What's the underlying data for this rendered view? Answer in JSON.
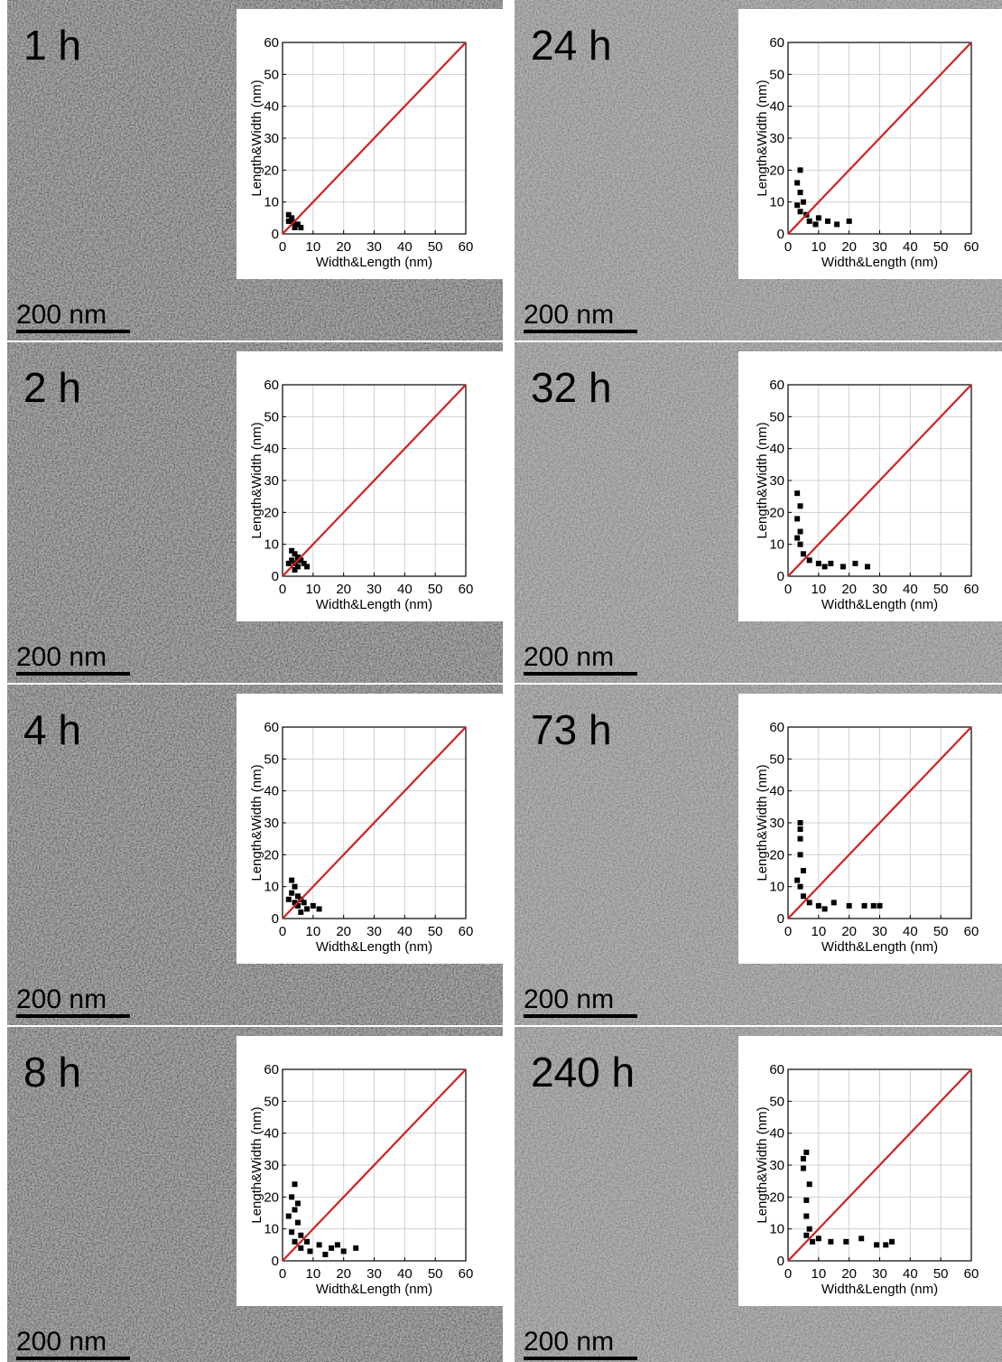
{
  "chart_data": [
    {
      "type": "scatter",
      "label": "1 h",
      "scale_bar": "200 nm",
      "xlabel": "Width&Length (nm)",
      "ylabel": "Length&Width (nm)",
      "xlim": [
        0,
        60
      ],
      "ylim": [
        0,
        60
      ],
      "xticks": [
        0,
        10,
        20,
        30,
        40,
        50,
        60
      ],
      "yticks": [
        0,
        10,
        20,
        30,
        40,
        50,
        60
      ],
      "grid": true,
      "reference_line": {
        "x": [
          0,
          60
        ],
        "y": [
          0,
          60
        ],
        "color": "#d02020"
      },
      "series": [
        {
          "color": "#000000",
          "x": [
            2,
            3,
            2,
            3,
            4,
            6,
            5,
            4,
            4,
            3
          ],
          "y": [
            6,
            5,
            4,
            4,
            3,
            2,
            3,
            2,
            3,
            4
          ]
        }
      ]
    },
    {
      "type": "scatter",
      "label": "2 h",
      "scale_bar": "200 nm",
      "xlabel": "Width&Length (nm)",
      "ylabel": "Length&Width (nm)",
      "xlim": [
        0,
        60
      ],
      "ylim": [
        0,
        60
      ],
      "xticks": [
        0,
        10,
        20,
        30,
        40,
        50,
        60
      ],
      "yticks": [
        0,
        10,
        20,
        30,
        40,
        50,
        60
      ],
      "grid": true,
      "reference_line": {
        "x": [
          0,
          60
        ],
        "y": [
          0,
          60
        ],
        "color": "#d02020"
      },
      "series": [
        {
          "color": "#000000",
          "x": [
            3,
            4,
            5,
            3,
            4,
            2,
            5,
            8,
            7,
            6,
            5,
            4,
            4,
            5
          ],
          "y": [
            8,
            7,
            6,
            5,
            4,
            4,
            5,
            3,
            4,
            5,
            3,
            4,
            2,
            5
          ]
        }
      ]
    },
    {
      "type": "scatter",
      "label": "4 h",
      "scale_bar": "200 nm",
      "xlabel": "Width&Length (nm)",
      "ylabel": "Length&Width (nm)",
      "xlim": [
        0,
        60
      ],
      "ylim": [
        0,
        60
      ],
      "xticks": [
        0,
        10,
        20,
        30,
        40,
        50,
        60
      ],
      "yticks": [
        0,
        10,
        20,
        30,
        40,
        50,
        60
      ],
      "grid": true,
      "reference_line": {
        "x": [
          0,
          60
        ],
        "y": [
          0,
          60
        ],
        "color": "#d02020"
      },
      "series": [
        {
          "color": "#000000",
          "x": [
            3,
            4,
            3,
            5,
            4,
            6,
            2,
            12,
            10,
            8,
            7,
            5,
            6,
            6
          ],
          "y": [
            12,
            10,
            8,
            7,
            5,
            6,
            6,
            3,
            4,
            3,
            5,
            4,
            6,
            2
          ]
        }
      ]
    },
    {
      "type": "scatter",
      "label": "8 h",
      "scale_bar": "200 nm",
      "xlabel": "Width&Length (nm)",
      "ylabel": "Length&Width (nm)",
      "xlim": [
        0,
        60
      ],
      "ylim": [
        0,
        60
      ],
      "xticks": [
        0,
        10,
        20,
        30,
        40,
        50,
        60
      ],
      "yticks": [
        0,
        10,
        20,
        30,
        40,
        50,
        60
      ],
      "grid": true,
      "reference_line": {
        "x": [
          0,
          60
        ],
        "y": [
          0,
          60
        ],
        "color": "#d02020"
      },
      "series": [
        {
          "color": "#000000",
          "x": [
            4,
            3,
            4,
            5,
            3,
            6,
            4,
            2,
            5,
            24,
            20,
            16,
            12,
            9,
            8,
            6,
            14,
            18
          ],
          "y": [
            24,
            20,
            16,
            12,
            9,
            8,
            6,
            14,
            18,
            4,
            3,
            4,
            5,
            3,
            6,
            4,
            2,
            5
          ]
        }
      ]
    },
    {
      "type": "scatter",
      "label": "24 h",
      "scale_bar": "200 nm",
      "xlabel": "Width&Length (nm)",
      "ylabel": "Length&Width (nm)",
      "xlim": [
        0,
        60
      ],
      "ylim": [
        0,
        60
      ],
      "xticks": [
        0,
        10,
        20,
        30,
        40,
        50,
        60
      ],
      "yticks": [
        0,
        10,
        20,
        30,
        40,
        50,
        60
      ],
      "grid": true,
      "reference_line": {
        "x": [
          0,
          60
        ],
        "y": [
          0,
          60
        ],
        "color": "#d02020"
      },
      "series": [
        {
          "color": "#000000",
          "x": [
            4,
            3,
            4,
            5,
            4,
            6,
            3,
            20,
            16,
            13,
            10,
            7,
            6,
            9
          ],
          "y": [
            20,
            16,
            13,
            10,
            7,
            6,
            9,
            4,
            3,
            4,
            5,
            4,
            6,
            3
          ]
        }
      ]
    },
    {
      "type": "scatter",
      "label": "32 h",
      "scale_bar": "200 nm",
      "xlabel": "Width&Length (nm)",
      "ylabel": "Length&Width (nm)",
      "xlim": [
        0,
        60
      ],
      "ylim": [
        0,
        60
      ],
      "xticks": [
        0,
        10,
        20,
        30,
        40,
        50,
        60
      ],
      "yticks": [
        0,
        10,
        20,
        30,
        40,
        50,
        60
      ],
      "grid": true,
      "reference_line": {
        "x": [
          0,
          60
        ],
        "y": [
          0,
          60
        ],
        "color": "#d02020"
      },
      "series": [
        {
          "color": "#000000",
          "x": [
            3,
            4,
            3,
            4,
            4,
            5,
            3,
            26,
            22,
            18,
            14,
            10,
            7,
            12
          ],
          "y": [
            26,
            22,
            18,
            14,
            10,
            7,
            12,
            3,
            4,
            3,
            4,
            4,
            5,
            3
          ]
        }
      ]
    },
    {
      "type": "scatter",
      "label": "73 h",
      "scale_bar": "200 nm",
      "xlabel": "Width&Length (nm)",
      "ylabel": "Length&Width (nm)",
      "xlim": [
        0,
        60
      ],
      "ylim": [
        0,
        60
      ],
      "xticks": [
        0,
        10,
        20,
        30,
        40,
        50,
        60
      ],
      "yticks": [
        0,
        10,
        20,
        30,
        40,
        50,
        60
      ],
      "grid": true,
      "reference_line": {
        "x": [
          0,
          60
        ],
        "y": [
          0,
          60
        ],
        "color": "#d02020"
      },
      "series": [
        {
          "color": "#000000",
          "x": [
            4,
            4,
            4,
            5,
            4,
            5,
            3,
            4,
            30,
            25,
            20,
            15,
            10,
            7,
            12,
            28
          ],
          "y": [
            30,
            25,
            20,
            15,
            10,
            7,
            12,
            28,
            4,
            4,
            4,
            5,
            4,
            5,
            3,
            4
          ]
        }
      ]
    },
    {
      "type": "scatter",
      "label": "240 h",
      "scale_bar": "200 nm",
      "xlabel": "Width&Length (nm)",
      "ylabel": "Length&Width (nm)",
      "xlim": [
        0,
        60
      ],
      "ylim": [
        0,
        60
      ],
      "xticks": [
        0,
        10,
        20,
        30,
        40,
        50,
        60
      ],
      "yticks": [
        0,
        10,
        20,
        30,
        40,
        50,
        60
      ],
      "grid": true,
      "reference_line": {
        "x": [
          0,
          60
        ],
        "y": [
          0,
          60
        ],
        "color": "#d02020"
      },
      "series": [
        {
          "color": "#000000",
          "x": [
            6,
            5,
            7,
            6,
            6,
            7,
            6,
            5,
            34,
            29,
            24,
            19,
            14,
            10,
            8,
            32
          ],
          "y": [
            34,
            29,
            24,
            19,
            14,
            10,
            8,
            32,
            6,
            5,
            7,
            6,
            6,
            7,
            6,
            5
          ]
        }
      ]
    }
  ]
}
